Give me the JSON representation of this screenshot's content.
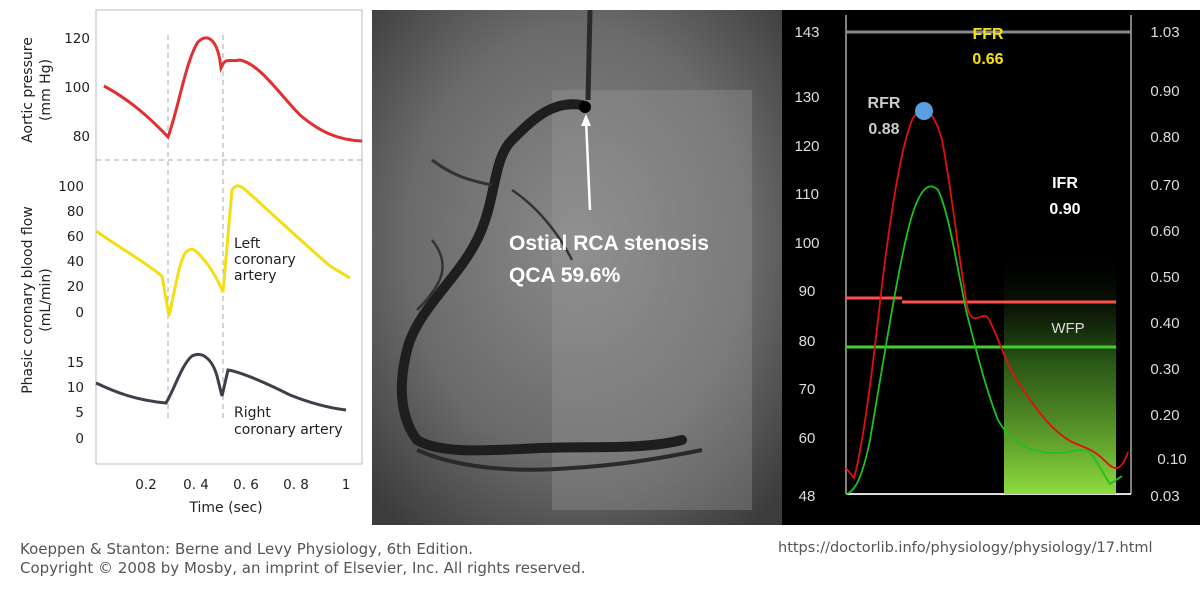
{
  "left_figure": {
    "aortic_ylabel_1": "Aortic pressure",
    "aortic_ylabel_2": "(mm Hg)",
    "aortic_ticks": [
      "120",
      "100",
      "80"
    ],
    "flow_ylabel_1": "Phasic coronary blood flow",
    "flow_ylabel_2": "(mL/min)",
    "left_flow_ticks": [
      "100",
      "80",
      "60",
      "40",
      "20",
      "0"
    ],
    "right_flow_ticks": [
      "15",
      "10",
      "5",
      "0"
    ],
    "left_label_1": "Left",
    "left_label_2": "coronary",
    "left_label_3": "artery",
    "right_label_1": "Right",
    "right_label_2": "coronary artery",
    "x_ticks": [
      "0.2",
      "0. 4",
      "0. 6",
      "0. 8",
      "1"
    ],
    "xlabel": "Time (sec)",
    "colors": {
      "aortic": "#e03030",
      "left": "#f5dd16",
      "right": "#3f3f4a"
    }
  },
  "angiogram": {
    "label_1": "Ostial RCA stenosis",
    "label_2": "QCA 59.6%"
  },
  "ffr_figure": {
    "left_ticks": [
      "143",
      "130",
      "120",
      "110",
      "100",
      "90",
      "80",
      "70",
      "60",
      "48"
    ],
    "right_ticks": [
      "1.03",
      "0.90",
      "0.80",
      "0.70",
      "0.60",
      "0.50",
      "0.40",
      "0.30",
      "0.20",
      "0.10",
      "0.03"
    ],
    "ffr_label": "FFR",
    "ffr_value": "0.66",
    "rfr_label": "RFR",
    "rfr_value": "0.88",
    "ifr_label": "IFR",
    "ifr_value": "0.90",
    "wfp_label": "WFP",
    "colors": {
      "ffr": "#f5e216",
      "pressure": "#e01010",
      "flow": "#20c020",
      "marker": "#5aa0e0"
    }
  },
  "captions": {
    "source_line_1": "Koeppen & Stanton: Berne and Levy Physiology, 6th Edition.",
    "source_line_2": "Copyright © 2008 by Mosby, an imprint of Elsevier, Inc. All rights reserved.",
    "url": "https://doctorlib.info/physiology/physiology/17.html"
  }
}
